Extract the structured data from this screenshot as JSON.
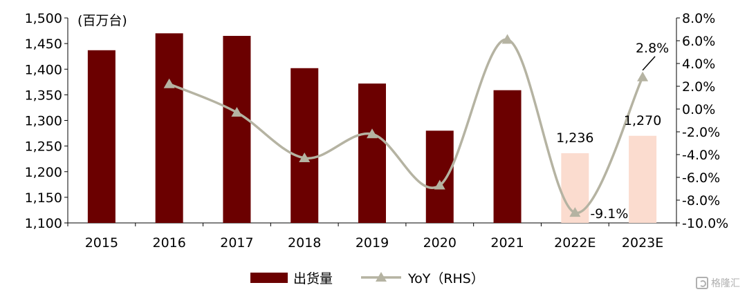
{
  "chart_data": {
    "type": "bar",
    "unit_label": "(百万台)",
    "categories": [
      "2015",
      "2016",
      "2017",
      "2018",
      "2019",
      "2020",
      "2021",
      "2022E",
      "2023E"
    ],
    "series": [
      {
        "name": "出货量",
        "type": "bar",
        "axis": "left",
        "values": [
          1437,
          1470,
          1465,
          1402,
          1372,
          1280,
          1359,
          1236,
          1270
        ],
        "forecast_flags": [
          false,
          false,
          false,
          false,
          false,
          false,
          false,
          true,
          true
        ],
        "color": "#6b0000",
        "forecast_color": "#fbdccf"
      },
      {
        "name": "YoY（RHS）",
        "type": "line",
        "axis": "right",
        "values": [
          null,
          2.2,
          -0.3,
          -4.3,
          -2.2,
          -6.7,
          6.1,
          -9.1,
          2.8
        ],
        "color": "#b5b3a2"
      }
    ],
    "y_left": {
      "min": 1100,
      "max": 1500,
      "step": 50,
      "tick_labels": [
        "1,100",
        "1,150",
        "1,200",
        "1,250",
        "1,300",
        "1,350",
        "1,400",
        "1,450",
        "1,500"
      ]
    },
    "y_right": {
      "min": -10,
      "max": 8,
      "step": 2,
      "tick_labels": [
        "-10.0%",
        "-8.0%",
        "-6.0%",
        "-4.0%",
        "-2.0%",
        "0.0%",
        "2.0%",
        "4.0%",
        "6.0%",
        "8.0%"
      ]
    },
    "annotations": [
      {
        "text": "1,236",
        "target": "bar",
        "index": 7
      },
      {
        "text": "1,270",
        "target": "bar",
        "index": 8
      },
      {
        "text": "-9.1%",
        "target": "line",
        "index": 7
      },
      {
        "text": "2.8%",
        "target": "line",
        "index": 8
      }
    ],
    "legend": {
      "placement": "bottom"
    }
  },
  "watermark": {
    "text": "格隆汇"
  }
}
